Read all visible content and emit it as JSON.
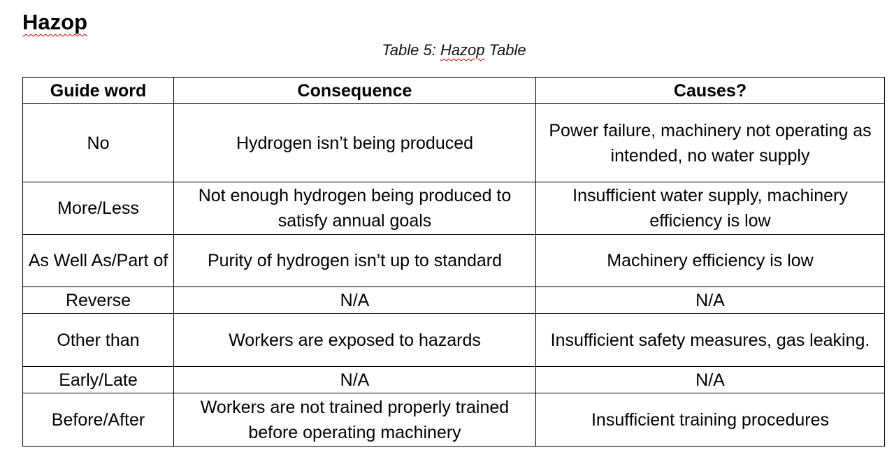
{
  "document": {
    "heading": "Hazop",
    "caption_prefix": "Table 5: ",
    "caption_word": "Hazop",
    "caption_suffix": " Table"
  },
  "table": {
    "headers": [
      "Guide word",
      "Consequence",
      "Causes?"
    ],
    "rows": [
      {
        "guide_word": "No",
        "consequence": "Hydrogen isn’t being produced",
        "causes": "Power failure, machinery not operating as intended, no water supply"
      },
      {
        "guide_word": "More/Less",
        "consequence": "Not enough hydrogen being produced to satisfy annual goals",
        "causes": "Insufficient water supply, machinery efficiency is low"
      },
      {
        "guide_word": "As Well As/Part of",
        "consequence": "Purity of hydrogen isn’t up to standard",
        "causes": "Machinery efficiency is low"
      },
      {
        "guide_word": "Reverse",
        "consequence": "N/A",
        "causes": "N/A"
      },
      {
        "guide_word": "Other than",
        "consequence": "Workers are exposed to hazards",
        "causes": "Insufficient safety measures, gas leaking."
      },
      {
        "guide_word": "Early/Late",
        "consequence": "N/A",
        "causes": "N/A"
      },
      {
        "guide_word": "Before/After",
        "consequence": "Workers are not trained properly trained before operating machinery",
        "causes": "Insufficient training procedures"
      }
    ]
  }
}
